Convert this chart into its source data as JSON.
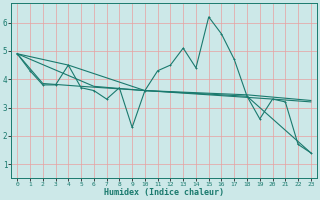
{
  "background_color": "#cce8e8",
  "grid_color_major": "#e8a0a0",
  "grid_color_minor": "#e8c8c8",
  "line_color": "#1a7a6e",
  "xlabel": "Humidex (Indice chaleur)",
  "xlim": [
    -0.5,
    23.5
  ],
  "ylim": [
    0.5,
    6.7
  ],
  "yticks": [
    1,
    2,
    3,
    4,
    5,
    6
  ],
  "xticks": [
    0,
    1,
    2,
    3,
    4,
    5,
    6,
    7,
    8,
    9,
    10,
    11,
    12,
    13,
    14,
    15,
    16,
    17,
    18,
    19,
    20,
    21,
    22,
    23
  ],
  "series": [
    [
      0,
      4.9
    ],
    [
      1,
      4.3
    ],
    [
      2,
      3.8
    ],
    [
      3,
      3.8
    ],
    [
      4,
      4.5
    ],
    [
      5,
      3.7
    ],
    [
      6,
      3.6
    ],
    [
      7,
      3.3
    ],
    [
      8,
      3.7
    ],
    [
      9,
      2.3
    ],
    [
      10,
      3.6
    ],
    [
      11,
      4.3
    ],
    [
      12,
      4.5
    ],
    [
      13,
      5.1
    ],
    [
      14,
      4.4
    ],
    [
      15,
      6.2
    ],
    [
      16,
      5.6
    ],
    [
      17,
      4.7
    ],
    [
      18,
      3.4
    ],
    [
      19,
      2.6
    ],
    [
      20,
      3.3
    ],
    [
      21,
      3.2
    ],
    [
      22,
      1.7
    ],
    [
      23,
      1.4
    ]
  ],
  "line2": [
    [
      0,
      4.9
    ],
    [
      2,
      3.85
    ],
    [
      5,
      3.75
    ],
    [
      10,
      3.6
    ],
    [
      18,
      3.45
    ],
    [
      23,
      3.25
    ]
  ],
  "line3": [
    [
      0,
      4.9
    ],
    [
      4,
      4.5
    ],
    [
      10,
      3.6
    ],
    [
      18,
      3.4
    ],
    [
      23,
      1.4
    ]
  ],
  "line4": [
    [
      0,
      4.9
    ],
    [
      6,
      3.75
    ],
    [
      10,
      3.6
    ],
    [
      20,
      3.3
    ],
    [
      23,
      3.2
    ]
  ]
}
